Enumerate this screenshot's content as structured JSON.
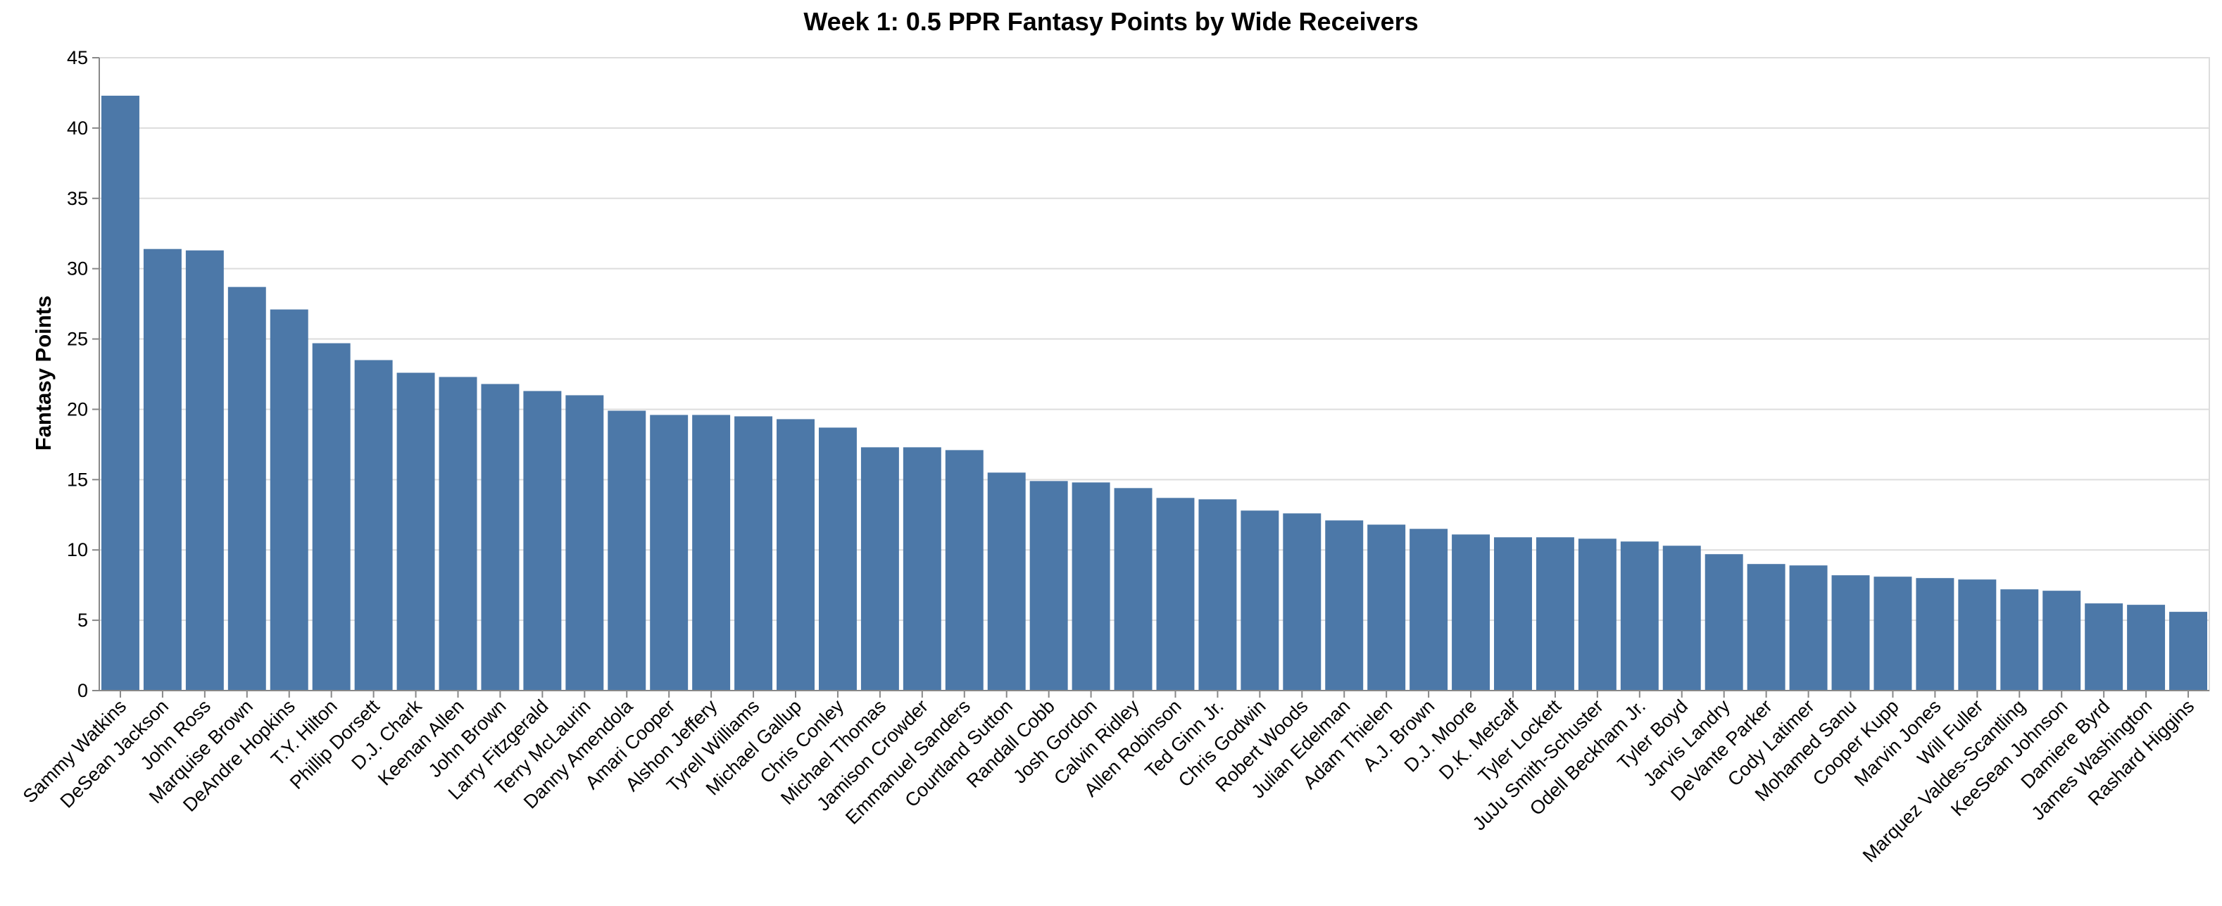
{
  "chart_data": {
    "type": "bar",
    "title": "Week 1: 0.5 PPR Fantasy Points by Wide Receivers",
    "xlabel": "",
    "ylabel": "Fantasy Points",
    "ylim": [
      0,
      45
    ],
    "yticks": [
      0,
      5,
      10,
      15,
      20,
      25,
      30,
      35,
      40,
      45
    ],
    "grid": true,
    "bar_color": "#4c78a8",
    "grid_color": "#dddddd",
    "axis_color": "#888888",
    "categories": [
      "Sammy Watkins",
      "DeSean Jackson",
      "John Ross",
      "Marquise Brown",
      "DeAndre Hopkins",
      "T.Y. Hilton",
      "Phillip Dorsett",
      "D.J. Chark",
      "Keenan Allen",
      "John Brown",
      "Larry Fitzgerald",
      "Terry McLaurin",
      "Danny Amendola",
      "Amari Cooper",
      "Alshon Jeffery",
      "Tyrell Williams",
      "Michael Gallup",
      "Chris Conley",
      "Michael Thomas",
      "Jamison Crowder",
      "Emmanuel Sanders",
      "Courtland Sutton",
      "Randall Cobb",
      "Josh Gordon",
      "Calvin Ridley",
      "Allen Robinson",
      "Ted Ginn Jr.",
      "Chris Godwin",
      "Robert Woods",
      "Julian Edelman",
      "Adam Thielen",
      "A.J. Brown",
      "D.J. Moore",
      "D.K. Metcalf",
      "Tyler Lockett",
      "JuJu Smith-Schuster",
      "Odell Beckham Jr.",
      "Tyler Boyd",
      "Jarvis Landry",
      "DeVante Parker",
      "Cody Latimer",
      "Mohamed Sanu",
      "Cooper Kupp",
      "Marvin Jones",
      "Will Fuller",
      "Marquez Valdes-Scantling",
      "KeeSean Johnson",
      "Damiere Byrd",
      "James Washington",
      "Rashard Higgins"
    ],
    "values": [
      42.3,
      31.4,
      31.3,
      28.7,
      27.1,
      24.7,
      23.5,
      22.6,
      22.3,
      21.8,
      21.3,
      21.0,
      19.9,
      19.6,
      19.6,
      19.5,
      19.3,
      18.7,
      17.3,
      17.3,
      17.1,
      15.5,
      14.9,
      14.8,
      14.4,
      13.7,
      13.6,
      12.8,
      12.6,
      12.1,
      11.8,
      11.5,
      11.1,
      10.9,
      10.9,
      10.8,
      10.6,
      10.3,
      9.7,
      9.0,
      8.9,
      8.2,
      8.1,
      8.0,
      7.9,
      7.2,
      7.1,
      6.2,
      6.1,
      5.6
    ]
  }
}
